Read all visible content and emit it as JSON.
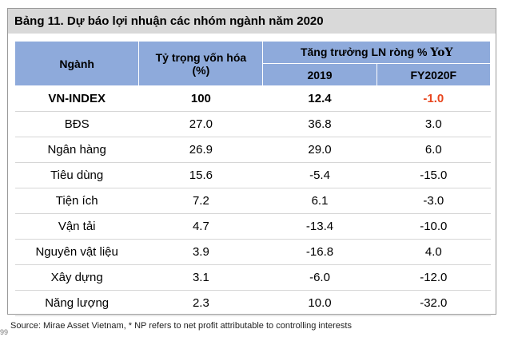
{
  "title": "Bảng 11. Dự báo lợi nhuận các nhóm ngành năm 2020",
  "header": {
    "sector": "Ngành",
    "weight_line1": "Tỷ trọng vốn hóa",
    "weight_line2": "(%)",
    "growth_prefix": "Tăng trưởng LN ròng % ",
    "growth_suffix": "YoY",
    "col_2019": "2019",
    "col_fy2020f": "FY2020F"
  },
  "rows": [
    {
      "sector": "VN-INDEX",
      "weight": "100",
      "y2019": "12.4",
      "fy2020f": "-1.0"
    },
    {
      "sector": "BĐS",
      "weight": "27.0",
      "y2019": "36.8",
      "fy2020f": "3.0"
    },
    {
      "sector": "Ngân hàng",
      "weight": "26.9",
      "y2019": "29.0",
      "fy2020f": "6.0"
    },
    {
      "sector": "Tiêu dùng",
      "weight": "15.6",
      "y2019": "-5.4",
      "fy2020f": "-15.0"
    },
    {
      "sector": "Tiện ích",
      "weight": "7.2",
      "y2019": "6.1",
      "fy2020f": "-3.0"
    },
    {
      "sector": "Vận tải",
      "weight": "4.7",
      "y2019": "-13.4",
      "fy2020f": "-10.0"
    },
    {
      "sector": "Nguyên vật liệu",
      "weight": "3.9",
      "y2019": "-16.8",
      "fy2020f": "4.0"
    },
    {
      "sector": "Xây dựng",
      "weight": "3.1",
      "y2019": "-6.0",
      "fy2020f": "-12.0"
    },
    {
      "sector": "Năng lượng",
      "weight": "2.3",
      "y2019": "10.0",
      "fy2020f": "-32.0"
    }
  ],
  "source": "Source:  Mirae Asset Vietnam, * NP refers to net profit attributable to controlling interests",
  "source_mark": "99",
  "colors": {
    "header_bg": "#8eaadb",
    "title_bg": "#d9d9d9",
    "highlight_negative": "#e8461e"
  }
}
